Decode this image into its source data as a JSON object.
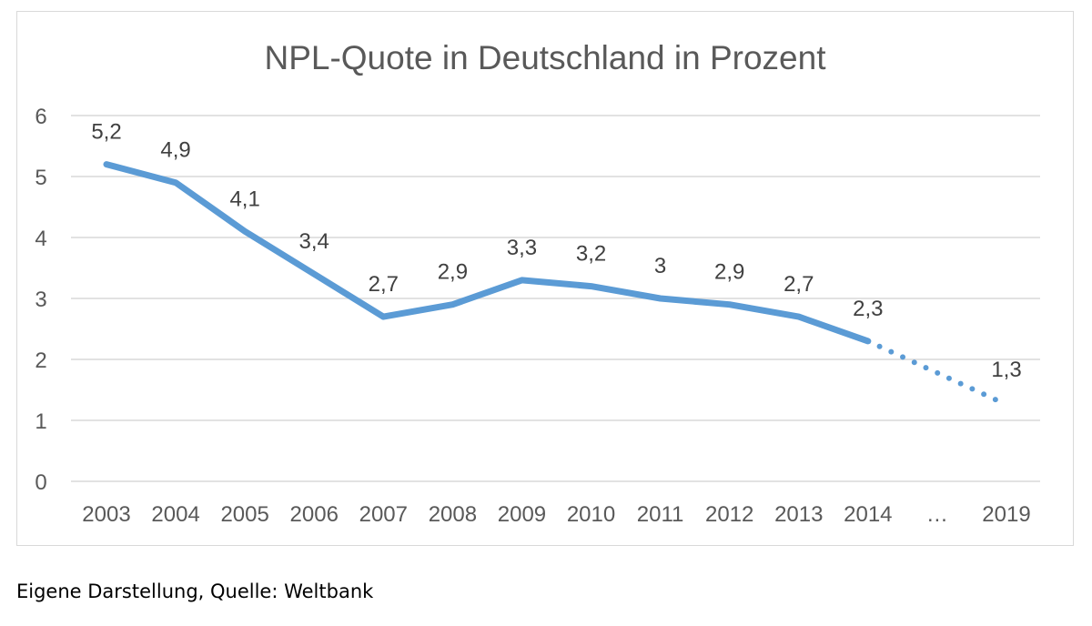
{
  "chart_data": {
    "type": "line",
    "title": "NPL-Quote in Deutschland in Prozent",
    "categories": [
      "2003",
      "2004",
      "2005",
      "2006",
      "2007",
      "2008",
      "2009",
      "2010",
      "2011",
      "2012",
      "2013",
      "2014",
      "…",
      "2019"
    ],
    "values": [
      5.2,
      4.9,
      4.1,
      3.4,
      2.7,
      2.9,
      3.3,
      3.2,
      3.0,
      2.9,
      2.7,
      2.3,
      null,
      1.3
    ],
    "data_labels": [
      "5,2",
      "4,9",
      "4,1",
      "3,4",
      "2,7",
      "2,9",
      "3,3",
      "3,2",
      "3",
      "2,9",
      "2,7",
      "2,3",
      "",
      "1,3"
    ],
    "solid_until": "2014",
    "dotted_segment": [
      "2014",
      "2019"
    ],
    "ylim": [
      0,
      6
    ],
    "yticks": [
      "0",
      "1",
      "2",
      "3",
      "4",
      "5",
      "6"
    ],
    "xlabel": "",
    "ylabel": "",
    "grid": "horizontal",
    "legend": "none",
    "line_color": "#5B9BD5"
  },
  "caption": "Eigene Darstellung, Quelle: Weltbank"
}
